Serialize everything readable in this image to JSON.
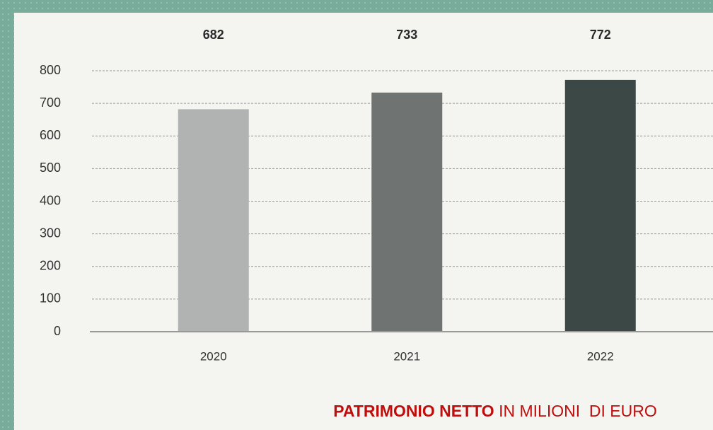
{
  "chart_data": {
    "type": "bar",
    "categories": [
      "2020",
      "2021",
      "2022"
    ],
    "values": [
      682,
      733,
      772
    ],
    "colors": [
      "#b0b3b1",
      "#6f7473",
      "#3c4845"
    ],
    "ylim": [
      0,
      800
    ],
    "yticks": [
      0,
      100,
      200,
      300,
      400,
      500,
      600,
      700,
      800
    ],
    "grid": true,
    "caption": {
      "bold": "PATRIMONIO NETTO",
      "normal": " IN MILIONI  DI EURO"
    }
  }
}
